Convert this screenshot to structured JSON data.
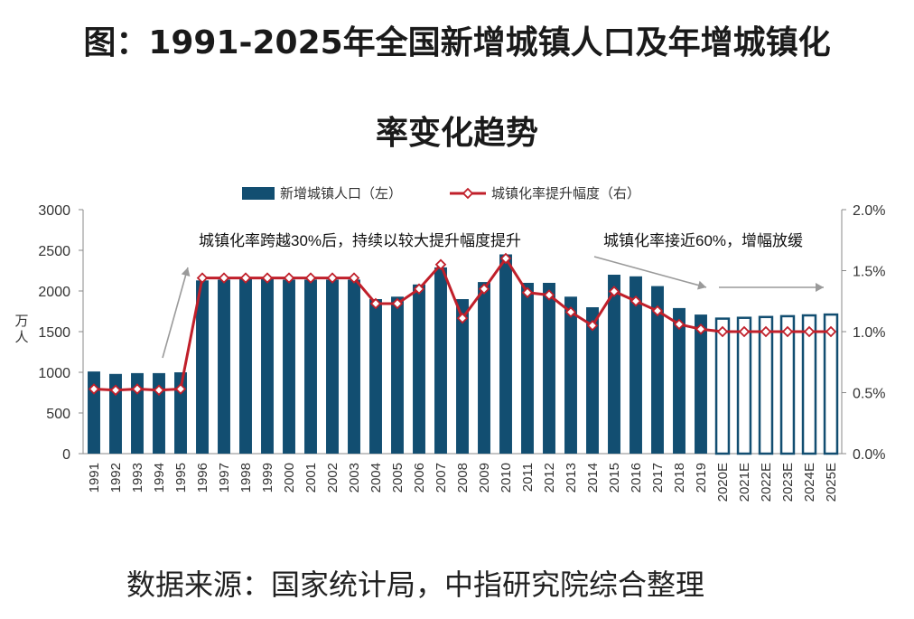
{
  "title": {
    "line1": "图：1991-2025年全国新增城镇人口及年增城镇化",
    "line2": "率变化趋势"
  },
  "source": "数据来源：国家统计局，中指研究院综合整理",
  "colors": {
    "bar": "#124e71",
    "line": "#c01f2a",
    "marker_fill": "#ffffff",
    "axis": "#888888",
    "text": "#333333"
  },
  "chart_data": {
    "type": "bar+line",
    "categories": [
      "1991",
      "1992",
      "1993",
      "1994",
      "1995",
      "1996",
      "1997",
      "1998",
      "1999",
      "2000",
      "2001",
      "2002",
      "2003",
      "2004",
      "2005",
      "2006",
      "2007",
      "2008",
      "2009",
      "2010",
      "2011",
      "2012",
      "2013",
      "2014",
      "2015",
      "2016",
      "2017",
      "2018",
      "2019",
      "2020E",
      "2021E",
      "2022E",
      "2023E",
      "2024E",
      "2025E"
    ],
    "estimated_from_index": 29,
    "series": [
      {
        "name": "新增城镇人口（左）",
        "type": "bar",
        "axis": "left",
        "values": [
          1010,
          980,
          990,
          990,
          1000,
          2130,
          2140,
          2150,
          2150,
          2140,
          2140,
          2140,
          2140,
          1900,
          1930,
          2080,
          2290,
          1900,
          2110,
          2450,
          2100,
          2100,
          1930,
          1800,
          2200,
          2180,
          2060,
          1790,
          1710,
          1660,
          1670,
          1680,
          1690,
          1700,
          1710
        ]
      },
      {
        "name": "城镇化率提升幅度（右）",
        "type": "line",
        "axis": "right",
        "values": [
          0.53,
          0.52,
          0.53,
          0.52,
          0.53,
          1.44,
          1.44,
          1.44,
          1.44,
          1.44,
          1.44,
          1.44,
          1.44,
          1.23,
          1.23,
          1.35,
          1.55,
          1.11,
          1.35,
          1.6,
          1.32,
          1.3,
          1.16,
          1.05,
          1.33,
          1.25,
          1.17,
          1.06,
          1.02,
          1.0,
          1.0,
          1.0,
          1.0,
          1.0,
          1.0
        ]
      }
    ],
    "y_left": {
      "label": "万人",
      "ylim": [
        0,
        3000
      ],
      "ticks": [
        0,
        500,
        1000,
        1500,
        2000,
        2500,
        3000
      ],
      "tick_labels": [
        "0",
        "500",
        "1000",
        "1500",
        "2000",
        "2500",
        "3000"
      ]
    },
    "y_right": {
      "ylim": [
        0,
        2.0
      ],
      "ticks": [
        0,
        0.5,
        1.0,
        1.5,
        2.0
      ],
      "tick_labels": [
        "0.0%",
        "0.5%",
        "1.0%",
        "1.5%",
        "2.0%"
      ]
    },
    "legend": {
      "position": "top"
    },
    "annotations": [
      "城镇化率跨越30%后，持续以较大提升幅度提升",
      "城镇化率接近60%，增幅放缓"
    ]
  }
}
